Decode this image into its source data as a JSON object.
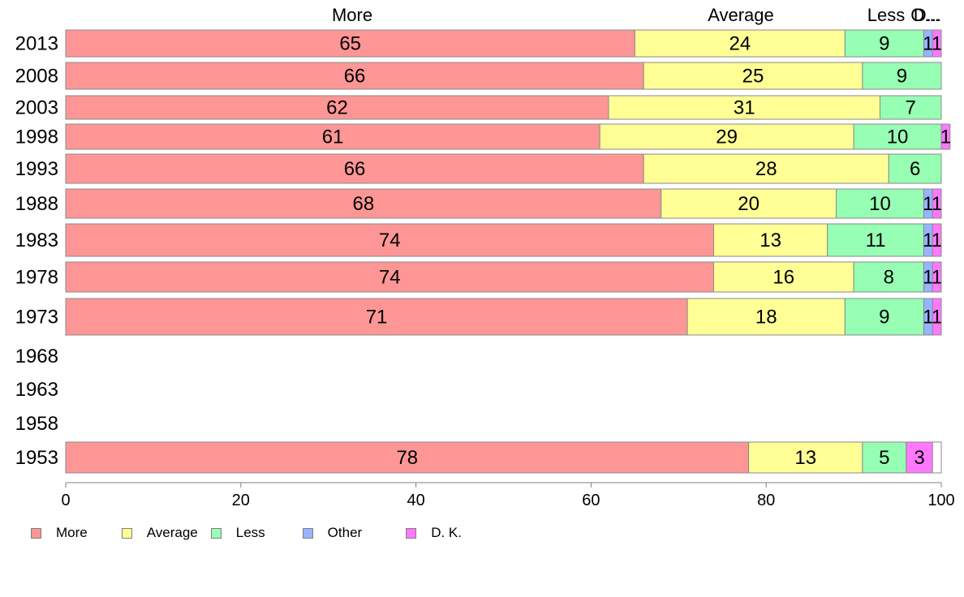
{
  "chart_data": {
    "type": "bar",
    "orientation": "horizontal",
    "stacked": true,
    "xlim": [
      0,
      100
    ],
    "x_ticks": [
      0,
      20,
      40,
      60,
      80,
      100
    ],
    "categories": [
      "2013",
      "2008",
      "2003",
      "1998",
      "1993",
      "1988",
      "1983",
      "1978",
      "1973",
      "1968",
      "1963",
      "1958",
      "1953"
    ],
    "header_labels": [
      "More",
      "Average",
      "Less",
      "O...",
      "D..."
    ],
    "series": [
      {
        "name": "More",
        "color": "#ff9696",
        "values": [
          65,
          66,
          62,
          61,
          66,
          68,
          74,
          74,
          71,
          null,
          null,
          null,
          78
        ]
      },
      {
        "name": "Average",
        "color": "#ffff96",
        "values": [
          24,
          25,
          31,
          29,
          28,
          20,
          13,
          16,
          18,
          null,
          null,
          null,
          13
        ]
      },
      {
        "name": "Less",
        "color": "#96ffb4",
        "values": [
          9,
          9,
          7,
          10,
          6,
          10,
          11,
          8,
          9,
          null,
          null,
          null,
          5
        ]
      },
      {
        "name": "Other",
        "color": "#96b4ff",
        "values": [
          1,
          0,
          0,
          0,
          0,
          1,
          1,
          1,
          1,
          null,
          null,
          null,
          0
        ]
      },
      {
        "name": "D. K.",
        "color": "#ff78ff",
        "values": [
          1,
          0,
          0,
          1,
          0,
          1,
          1,
          1,
          1,
          null,
          null,
          null,
          3
        ]
      }
    ],
    "legend_position": "bottom-left",
    "grid": false
  }
}
